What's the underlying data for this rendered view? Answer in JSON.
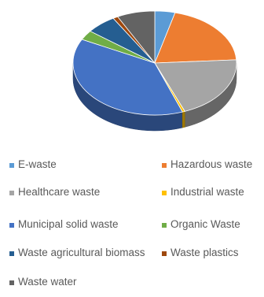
{
  "chart_data": {
    "type": "pie",
    "title": "",
    "style": "3d",
    "legend_position": "bottom",
    "categories": [
      "E-waste",
      "Hazardous waste",
      "Healthcare waste",
      "Industrial waste",
      "Municipal solid waste",
      "Organic Waste",
      "Waste agricultural biomass",
      "Waste plastics",
      "Waste water"
    ],
    "values": [
      4,
      20,
      20,
      0.5,
      38,
      3,
      6,
      1,
      7.5
    ],
    "colors": [
      "#5b9bd5",
      "#ed7d31",
      "#a5a5a5",
      "#ffc000",
      "#4472c4",
      "#70ad47",
      "#255e91",
      "#9e480e",
      "#636363"
    ]
  }
}
